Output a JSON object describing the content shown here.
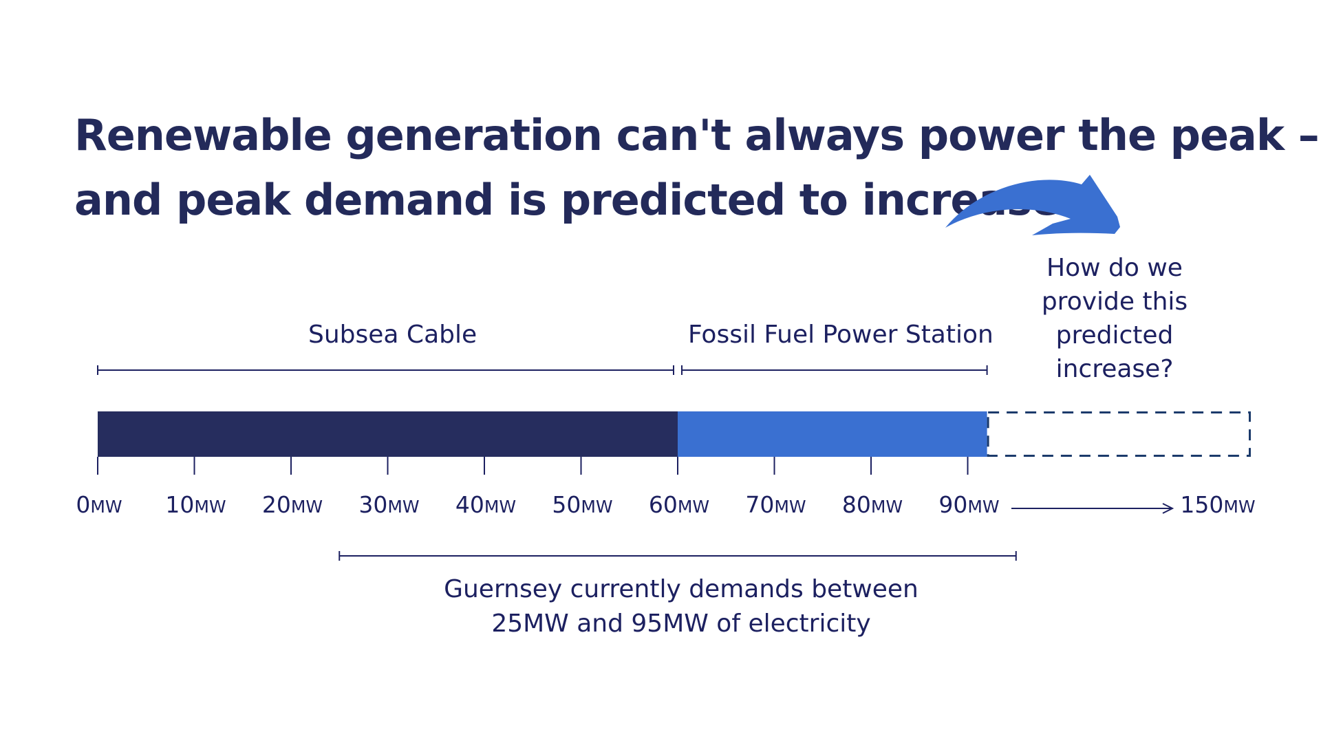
{
  "title": {
    "line1": "Renewable generation can't always power the peak –",
    "line2": "and peak demand is predicted to increase"
  },
  "question": {
    "line1": "How do we",
    "line2": "provide this",
    "line3": "predicted",
    "line4": "increase?"
  },
  "segments": {
    "subsea_cable": {
      "label": "Subsea Cable",
      "from_mw": 0,
      "to_mw": 60,
      "color": "#262d5e"
    },
    "fossil_fuel": {
      "label": "Fossil Fuel Power Station",
      "from_mw": 60,
      "to_mw": 92,
      "color": "#3a70d1"
    },
    "predicted_increase": {
      "from_mw": 92,
      "to_mw": 150,
      "border_color": "#1b3a6b"
    }
  },
  "demand_range": {
    "from_mw": 25,
    "to_mw": 95,
    "line1": "Guernsey currently demands between",
    "line2": "25MW and 95MW of electricity"
  },
  "axis": {
    "unit": "MW",
    "ticks": [
      "0",
      "10",
      "20",
      "30",
      "40",
      "50",
      "60",
      "70",
      "80",
      "90"
    ],
    "end_tick": "150"
  },
  "colors": {
    "text": "#1c2060",
    "title": "#232a5a",
    "arrow": "#3a70d1"
  },
  "icons": {
    "curved_arrow": "curved-arrow-icon",
    "axis_break_arrow": "long-right-arrow-icon"
  }
}
